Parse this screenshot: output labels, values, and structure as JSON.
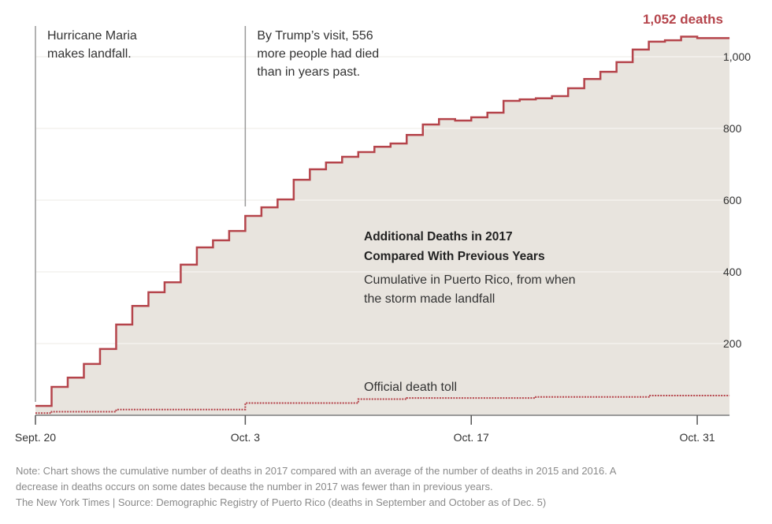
{
  "chart_data": {
    "type": "line",
    "subtype": "step-area",
    "title": "Additional Deaths in 2017 Compared With Previous Years",
    "subtitle_lines": [
      "Cumulative in Puerto Rico, from when",
      "the storm made landfall"
    ],
    "x_start_date": "Sept. 20",
    "x_ticks": [
      {
        "label": "Sept. 20",
        "day": 0
      },
      {
        "label": "Oct. 3",
        "day": 13
      },
      {
        "label": "Oct. 17",
        "day": 27
      },
      {
        "label": "Oct. 31",
        "day": 41
      }
    ],
    "y_ticks": [
      {
        "label": "200",
        "value": 200
      },
      {
        "label": "400",
        "value": 400
      },
      {
        "label": "600",
        "value": 600
      },
      {
        "label": "800",
        "value": 800
      },
      {
        "label": "1,000",
        "value": 1000
      }
    ],
    "ylim": [
      0,
      1070
    ],
    "grid": true,
    "series": [
      {
        "name": "Additional deaths",
        "style": "solid",
        "color": "#b5444b",
        "values": [
          26,
          79,
          105,
          143,
          185,
          253,
          305,
          343,
          371,
          420,
          468,
          488,
          514,
          556,
          580,
          602,
          657,
          686,
          705,
          721,
          734,
          749,
          758,
          782,
          811,
          826,
          822,
          831,
          844,
          877,
          881,
          884,
          890,
          912,
          938,
          958,
          985,
          1020,
          1042,
          1046,
          1056,
          1052,
          1052
        ]
      },
      {
        "name": "Official death toll",
        "style": "dotted",
        "color": "#b5444b",
        "values": [
          6,
          10,
          10,
          10,
          10,
          16,
          16,
          16,
          16,
          16,
          16,
          16,
          16,
          34,
          34,
          34,
          34,
          34,
          34,
          34,
          45,
          45,
          45,
          48,
          48,
          48,
          48,
          48,
          48,
          48,
          48,
          51,
          51,
          51,
          51,
          51,
          51,
          51,
          55,
          55,
          55,
          55,
          55
        ]
      }
    ],
    "end_label": "1,052 deaths",
    "annotations": [
      {
        "day": 0,
        "lines": [
          "Hurricane Maria",
          "makes landfall."
        ]
      },
      {
        "day": 13,
        "lines": [
          "By Trump’s visit, 556",
          "more people had died",
          "than in years past."
        ]
      }
    ],
    "official_label": "Official death toll",
    "colors": {
      "fill": "#e8e4de",
      "line": "#b5444b",
      "text": "#333333"
    }
  },
  "notes": {
    "line1": "Note: Chart shows the cumulative number of deaths in 2017 compared with an average of the number of deaths in 2015 and 2016. A",
    "line2": "decrease in deaths occurs on some dates because the number in 2017 was fewer than in previous years.",
    "source": "The New York Times | Source: Demographic Registry of Puerto Rico (deaths in September and October as of Dec. 5)"
  }
}
